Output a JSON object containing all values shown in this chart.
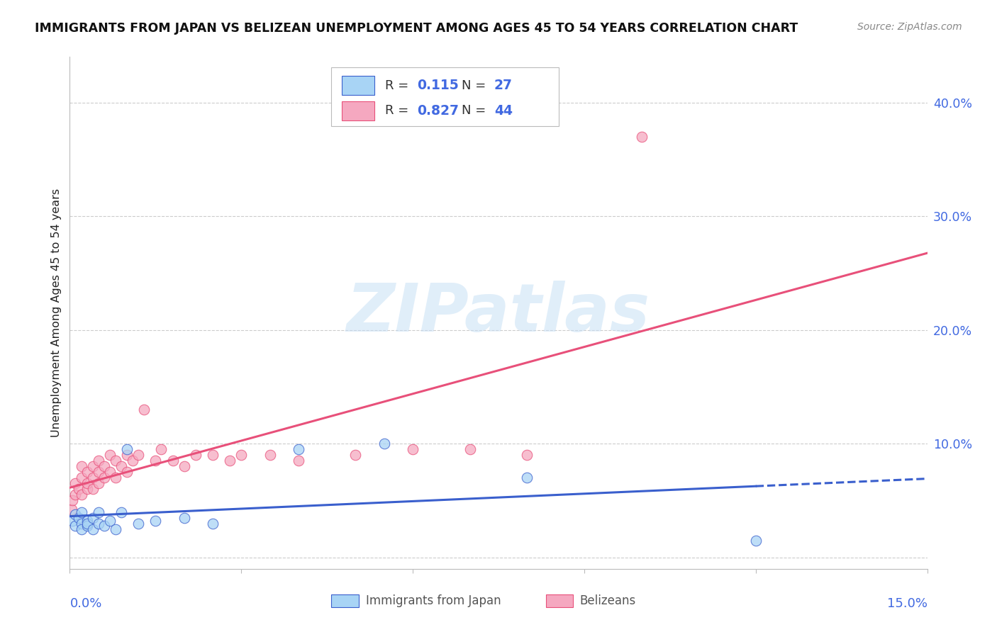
{
  "title": "IMMIGRANTS FROM JAPAN VS BELIZEAN UNEMPLOYMENT AMONG AGES 45 TO 54 YEARS CORRELATION CHART",
  "source": "Source: ZipAtlas.com",
  "ylabel": "Unemployment Among Ages 45 to 54 years",
  "xlim": [
    0.0,
    0.15
  ],
  "ylim": [
    -0.01,
    0.44
  ],
  "yticks": [
    0.0,
    0.1,
    0.2,
    0.3,
    0.4
  ],
  "ytick_labels": [
    "",
    "10.0%",
    "20.0%",
    "30.0%",
    "40.0%"
  ],
  "xticks": [
    0.0,
    0.03,
    0.06,
    0.09,
    0.12,
    0.15
  ],
  "color_japan": "#A8D4F5",
  "color_belize": "#F5A8C0",
  "color_japan_line": "#3A5FCD",
  "color_belize_line": "#E8507A",
  "watermark_text": "ZIPatlas",
  "japan_x": [
    0.0005,
    0.001,
    0.001,
    0.0015,
    0.002,
    0.002,
    0.002,
    0.003,
    0.003,
    0.003,
    0.004,
    0.004,
    0.005,
    0.005,
    0.006,
    0.007,
    0.008,
    0.009,
    0.01,
    0.012,
    0.015,
    0.02,
    0.025,
    0.04,
    0.055,
    0.08,
    0.12
  ],
  "japan_y": [
    0.032,
    0.038,
    0.028,
    0.035,
    0.03,
    0.025,
    0.04,
    0.032,
    0.028,
    0.03,
    0.025,
    0.035,
    0.04,
    0.03,
    0.028,
    0.032,
    0.025,
    0.04,
    0.095,
    0.03,
    0.032,
    0.035,
    0.03,
    0.095,
    0.1,
    0.07,
    0.015
  ],
  "belize_x": [
    0.0003,
    0.0005,
    0.001,
    0.001,
    0.0015,
    0.002,
    0.002,
    0.002,
    0.003,
    0.003,
    0.003,
    0.004,
    0.004,
    0.004,
    0.005,
    0.005,
    0.005,
    0.006,
    0.006,
    0.007,
    0.007,
    0.008,
    0.008,
    0.009,
    0.01,
    0.01,
    0.011,
    0.012,
    0.013,
    0.015,
    0.016,
    0.018,
    0.02,
    0.022,
    0.025,
    0.028,
    0.03,
    0.035,
    0.04,
    0.05,
    0.06,
    0.07,
    0.08,
    0.1
  ],
  "belize_y": [
    0.042,
    0.05,
    0.055,
    0.065,
    0.06,
    0.055,
    0.07,
    0.08,
    0.06,
    0.065,
    0.075,
    0.06,
    0.07,
    0.08,
    0.065,
    0.075,
    0.085,
    0.07,
    0.08,
    0.075,
    0.09,
    0.07,
    0.085,
    0.08,
    0.075,
    0.09,
    0.085,
    0.09,
    0.13,
    0.085,
    0.095,
    0.085,
    0.08,
    0.09,
    0.09,
    0.085,
    0.09,
    0.09,
    0.085,
    0.09,
    0.095,
    0.095,
    0.09,
    0.37
  ]
}
